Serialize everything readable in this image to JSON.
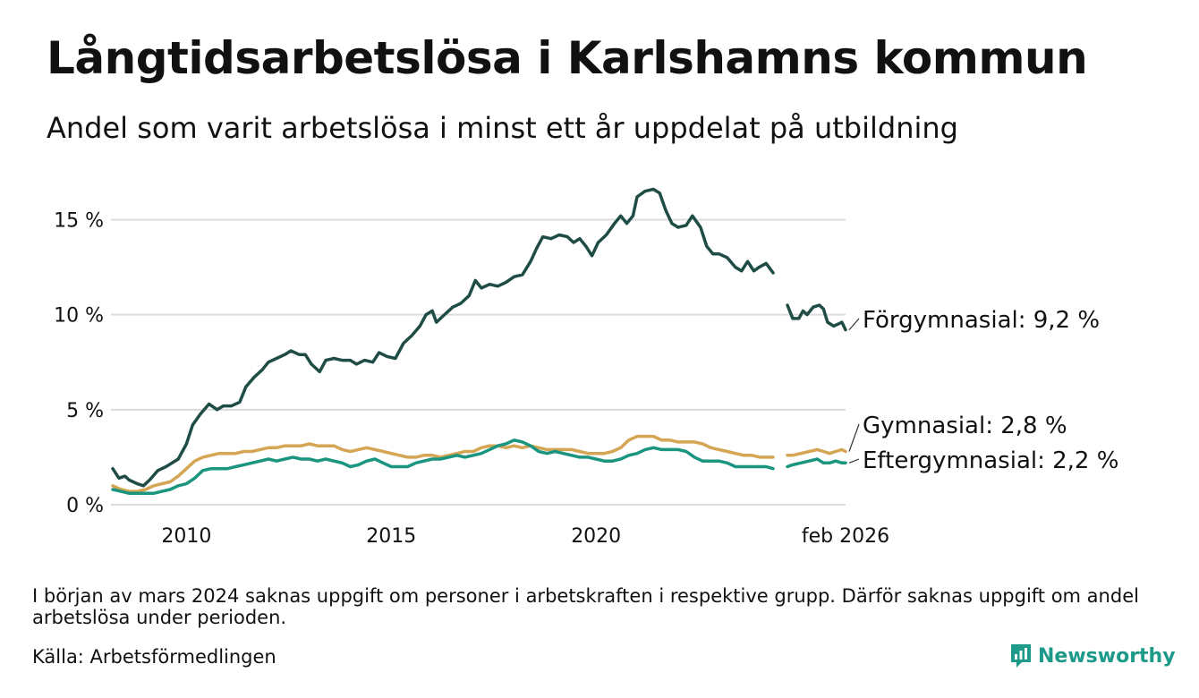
{
  "title": "Långtidsarbetslösa i Karlshamns kommun",
  "subtitle": "Andel som varit arbetslösa i minst ett år uppdelat på utbildning",
  "note": "I början av mars 2024 saknas uppgift om personer i arbetskraften i respektive grupp. Därför saknas uppgift om andel arbetslösa under perioden.",
  "source": "Källa: Arbetsförmedlingen",
  "brand": "Newsworthy",
  "colors": {
    "forgymnasial": "#1f4d46",
    "gymnasial": "#d4a552",
    "eftergymnasial": "#1a9580",
    "grid": "#dcdcdc",
    "brand": "#1d9a8a"
  },
  "chart_data": {
    "type": "line",
    "title": "Långtidsarbetslösa i Karlshamns kommun",
    "subtitle": "Andel som varit arbetslösa i minst ett år uppdelat på utbildning",
    "xlabel": "",
    "ylabel": "",
    "x_unit": "year",
    "xlim": [
      2008.2,
      2026.09
    ],
    "ylim": [
      0,
      17
    ],
    "y_ticks": [
      0,
      5,
      10,
      15
    ],
    "y_tick_labels": [
      "0 %",
      "5 %",
      "10 %",
      "15 %"
    ],
    "x_ticks": [
      2010,
      2015,
      2020,
      2026.09
    ],
    "x_tick_labels": [
      "2010",
      "2015",
      "2020",
      "feb 2026"
    ],
    "grid": true,
    "gap": [
      2024.0,
      2024.3
    ],
    "series": [
      {
        "name": "Förgymnasial",
        "label": "Förgymnasial: 9,2 %",
        "color_key": "forgymnasial",
        "points": [
          [
            2008.2,
            1.9
          ],
          [
            2008.35,
            1.4
          ],
          [
            2008.5,
            1.5
          ],
          [
            2008.6,
            1.3
          ],
          [
            2008.8,
            1.1
          ],
          [
            2008.95,
            1.0
          ],
          [
            2009.1,
            1.3
          ],
          [
            2009.3,
            1.8
          ],
          [
            2009.5,
            2.0
          ],
          [
            2009.65,
            2.2
          ],
          [
            2009.8,
            2.4
          ],
          [
            2010.0,
            3.2
          ],
          [
            2010.15,
            4.2
          ],
          [
            2010.35,
            4.8
          ],
          [
            2010.55,
            5.3
          ],
          [
            2010.75,
            5.0
          ],
          [
            2010.9,
            5.2
          ],
          [
            2011.1,
            5.2
          ],
          [
            2011.3,
            5.4
          ],
          [
            2011.45,
            6.2
          ],
          [
            2011.65,
            6.7
          ],
          [
            2011.85,
            7.1
          ],
          [
            2012.0,
            7.5
          ],
          [
            2012.2,
            7.7
          ],
          [
            2012.4,
            7.9
          ],
          [
            2012.55,
            8.1
          ],
          [
            2012.75,
            7.9
          ],
          [
            2012.9,
            7.9
          ],
          [
            2013.05,
            7.4
          ],
          [
            2013.25,
            7.0
          ],
          [
            2013.4,
            7.6
          ],
          [
            2013.6,
            7.7
          ],
          [
            2013.8,
            7.6
          ],
          [
            2014.0,
            7.6
          ],
          [
            2014.15,
            7.4
          ],
          [
            2014.35,
            7.6
          ],
          [
            2014.55,
            7.5
          ],
          [
            2014.7,
            8.0
          ],
          [
            2014.9,
            7.8
          ],
          [
            2015.1,
            7.7
          ],
          [
            2015.3,
            8.5
          ],
          [
            2015.5,
            8.9
          ],
          [
            2015.7,
            9.4
          ],
          [
            2015.85,
            10.0
          ],
          [
            2016.0,
            10.2
          ],
          [
            2016.1,
            9.6
          ],
          [
            2016.3,
            10.0
          ],
          [
            2016.5,
            10.4
          ],
          [
            2016.7,
            10.6
          ],
          [
            2016.9,
            11.0
          ],
          [
            2017.05,
            11.8
          ],
          [
            2017.2,
            11.4
          ],
          [
            2017.4,
            11.6
          ],
          [
            2017.6,
            11.5
          ],
          [
            2017.8,
            11.7
          ],
          [
            2018.0,
            12.0
          ],
          [
            2018.2,
            12.1
          ],
          [
            2018.4,
            12.8
          ],
          [
            2018.55,
            13.5
          ],
          [
            2018.7,
            14.1
          ],
          [
            2018.9,
            14.0
          ],
          [
            2019.1,
            14.2
          ],
          [
            2019.3,
            14.1
          ],
          [
            2019.45,
            13.8
          ],
          [
            2019.6,
            14.0
          ],
          [
            2019.75,
            13.6
          ],
          [
            2019.9,
            13.1
          ],
          [
            2020.05,
            13.8
          ],
          [
            2020.25,
            14.2
          ],
          [
            2020.45,
            14.8
          ],
          [
            2020.6,
            15.2
          ],
          [
            2020.75,
            14.8
          ],
          [
            2020.9,
            15.2
          ],
          [
            2021.0,
            16.2
          ],
          [
            2021.2,
            16.5
          ],
          [
            2021.4,
            16.6
          ],
          [
            2021.55,
            16.4
          ],
          [
            2021.7,
            15.5
          ],
          [
            2021.85,
            14.8
          ],
          [
            2022.0,
            14.6
          ],
          [
            2022.2,
            14.7
          ],
          [
            2022.35,
            15.2
          ],
          [
            2022.55,
            14.6
          ],
          [
            2022.7,
            13.6
          ],
          [
            2022.85,
            13.2
          ],
          [
            2023.0,
            13.2
          ],
          [
            2023.2,
            13.0
          ],
          [
            2023.4,
            12.5
          ],
          [
            2023.55,
            12.3
          ],
          [
            2023.7,
            12.8
          ],
          [
            2023.85,
            12.3
          ],
          [
            2023.98,
            12.5
          ],
          [
            2024.15,
            12.7
          ],
          [
            2024.32,
            12.2
          ],
          null,
          [
            2024.67,
            10.5
          ],
          [
            2024.8,
            9.8
          ],
          [
            2024.95,
            9.8
          ],
          [
            2025.05,
            10.2
          ],
          [
            2025.15,
            10.0
          ],
          [
            2025.3,
            10.4
          ],
          [
            2025.45,
            10.5
          ],
          [
            2025.55,
            10.3
          ],
          [
            2025.65,
            9.6
          ],
          [
            2025.8,
            9.4
          ],
          [
            2025.9,
            9.5
          ],
          [
            2026.0,
            9.6
          ],
          [
            2026.09,
            9.2
          ]
        ]
      },
      {
        "name": "Gymnasial",
        "label": "Gymnasial: 2,8 %",
        "color_key": "gymnasial",
        "points": [
          [
            2008.2,
            1.0
          ],
          [
            2008.4,
            0.8
          ],
          [
            2008.6,
            0.7
          ],
          [
            2008.8,
            0.7
          ],
          [
            2009.0,
            0.8
          ],
          [
            2009.2,
            1.0
          ],
          [
            2009.4,
            1.1
          ],
          [
            2009.6,
            1.2
          ],
          [
            2009.8,
            1.5
          ],
          [
            2010.0,
            1.9
          ],
          [
            2010.2,
            2.3
          ],
          [
            2010.4,
            2.5
          ],
          [
            2010.6,
            2.6
          ],
          [
            2010.8,
            2.7
          ],
          [
            2011.0,
            2.7
          ],
          [
            2011.2,
            2.7
          ],
          [
            2011.4,
            2.8
          ],
          [
            2011.6,
            2.8
          ],
          [
            2011.8,
            2.9
          ],
          [
            2012.0,
            3.0
          ],
          [
            2012.2,
            3.0
          ],
          [
            2012.4,
            3.1
          ],
          [
            2012.6,
            3.1
          ],
          [
            2012.8,
            3.1
          ],
          [
            2013.0,
            3.2
          ],
          [
            2013.2,
            3.1
          ],
          [
            2013.4,
            3.1
          ],
          [
            2013.6,
            3.1
          ],
          [
            2013.8,
            2.9
          ],
          [
            2014.0,
            2.8
          ],
          [
            2014.2,
            2.9
          ],
          [
            2014.4,
            3.0
          ],
          [
            2014.6,
            2.9
          ],
          [
            2014.8,
            2.8
          ],
          [
            2015.0,
            2.7
          ],
          [
            2015.2,
            2.6
          ],
          [
            2015.4,
            2.5
          ],
          [
            2015.6,
            2.5
          ],
          [
            2015.8,
            2.6
          ],
          [
            2016.0,
            2.6
          ],
          [
            2016.2,
            2.5
          ],
          [
            2016.4,
            2.6
          ],
          [
            2016.6,
            2.7
          ],
          [
            2016.8,
            2.8
          ],
          [
            2017.0,
            2.8
          ],
          [
            2017.2,
            3.0
          ],
          [
            2017.4,
            3.1
          ],
          [
            2017.6,
            3.1
          ],
          [
            2017.8,
            3.0
          ],
          [
            2018.0,
            3.1
          ],
          [
            2018.2,
            3.0
          ],
          [
            2018.4,
            3.1
          ],
          [
            2018.6,
            3.0
          ],
          [
            2018.8,
            2.9
          ],
          [
            2019.0,
            2.9
          ],
          [
            2019.2,
            2.9
          ],
          [
            2019.4,
            2.9
          ],
          [
            2019.6,
            2.8
          ],
          [
            2019.8,
            2.7
          ],
          [
            2020.0,
            2.7
          ],
          [
            2020.2,
            2.7
          ],
          [
            2020.4,
            2.8
          ],
          [
            2020.6,
            3.0
          ],
          [
            2020.8,
            3.4
          ],
          [
            2021.0,
            3.6
          ],
          [
            2021.2,
            3.6
          ],
          [
            2021.4,
            3.6
          ],
          [
            2021.6,
            3.4
          ],
          [
            2021.8,
            3.4
          ],
          [
            2022.0,
            3.3
          ],
          [
            2022.2,
            3.3
          ],
          [
            2022.4,
            3.3
          ],
          [
            2022.6,
            3.2
          ],
          [
            2022.8,
            3.0
          ],
          [
            2023.0,
            2.9
          ],
          [
            2023.2,
            2.8
          ],
          [
            2023.4,
            2.7
          ],
          [
            2023.6,
            2.6
          ],
          [
            2023.8,
            2.6
          ],
          [
            2024.0,
            2.5
          ],
          [
            2024.15,
            2.5
          ],
          [
            2024.32,
            2.5
          ],
          null,
          [
            2024.67,
            2.6
          ],
          [
            2024.8,
            2.6
          ],
          [
            2025.0,
            2.7
          ],
          [
            2025.2,
            2.8
          ],
          [
            2025.4,
            2.9
          ],
          [
            2025.55,
            2.8
          ],
          [
            2025.7,
            2.7
          ],
          [
            2025.85,
            2.8
          ],
          [
            2026.0,
            2.9
          ],
          [
            2026.09,
            2.8
          ]
        ]
      },
      {
        "name": "Eftergymnasial",
        "label": "Eftergymnasial: 2,2 %",
        "color_key": "eftergymnasial",
        "points": [
          [
            2008.2,
            0.8
          ],
          [
            2008.4,
            0.7
          ],
          [
            2008.6,
            0.6
          ],
          [
            2008.8,
            0.6
          ],
          [
            2009.0,
            0.6
          ],
          [
            2009.2,
            0.6
          ],
          [
            2009.4,
            0.7
          ],
          [
            2009.6,
            0.8
          ],
          [
            2009.8,
            1.0
          ],
          [
            2010.0,
            1.1
          ],
          [
            2010.2,
            1.4
          ],
          [
            2010.4,
            1.8
          ],
          [
            2010.6,
            1.9
          ],
          [
            2010.8,
            1.9
          ],
          [
            2011.0,
            1.9
          ],
          [
            2011.2,
            2.0
          ],
          [
            2011.4,
            2.1
          ],
          [
            2011.6,
            2.2
          ],
          [
            2011.8,
            2.3
          ],
          [
            2012.0,
            2.4
          ],
          [
            2012.2,
            2.3
          ],
          [
            2012.4,
            2.4
          ],
          [
            2012.6,
            2.5
          ],
          [
            2012.8,
            2.4
          ],
          [
            2013.0,
            2.4
          ],
          [
            2013.2,
            2.3
          ],
          [
            2013.4,
            2.4
          ],
          [
            2013.6,
            2.3
          ],
          [
            2013.8,
            2.2
          ],
          [
            2014.0,
            2.0
          ],
          [
            2014.2,
            2.1
          ],
          [
            2014.4,
            2.3
          ],
          [
            2014.6,
            2.4
          ],
          [
            2014.8,
            2.2
          ],
          [
            2015.0,
            2.0
          ],
          [
            2015.2,
            2.0
          ],
          [
            2015.4,
            2.0
          ],
          [
            2015.6,
            2.2
          ],
          [
            2015.8,
            2.3
          ],
          [
            2016.0,
            2.4
          ],
          [
            2016.2,
            2.4
          ],
          [
            2016.4,
            2.5
          ],
          [
            2016.6,
            2.6
          ],
          [
            2016.8,
            2.5
          ],
          [
            2017.0,
            2.6
          ],
          [
            2017.2,
            2.7
          ],
          [
            2017.4,
            2.9
          ],
          [
            2017.6,
            3.1
          ],
          [
            2017.8,
            3.2
          ],
          [
            2018.0,
            3.4
          ],
          [
            2018.2,
            3.3
          ],
          [
            2018.4,
            3.1
          ],
          [
            2018.6,
            2.8
          ],
          [
            2018.8,
            2.7
          ],
          [
            2019.0,
            2.8
          ],
          [
            2019.2,
            2.7
          ],
          [
            2019.4,
            2.6
          ],
          [
            2019.6,
            2.5
          ],
          [
            2019.8,
            2.5
          ],
          [
            2020.0,
            2.4
          ],
          [
            2020.2,
            2.3
          ],
          [
            2020.4,
            2.3
          ],
          [
            2020.6,
            2.4
          ],
          [
            2020.8,
            2.6
          ],
          [
            2021.0,
            2.7
          ],
          [
            2021.2,
            2.9
          ],
          [
            2021.4,
            3.0
          ],
          [
            2021.6,
            2.9
          ],
          [
            2021.8,
            2.9
          ],
          [
            2022.0,
            2.9
          ],
          [
            2022.2,
            2.8
          ],
          [
            2022.4,
            2.5
          ],
          [
            2022.6,
            2.3
          ],
          [
            2022.8,
            2.3
          ],
          [
            2023.0,
            2.3
          ],
          [
            2023.2,
            2.2
          ],
          [
            2023.4,
            2.0
          ],
          [
            2023.6,
            2.0
          ],
          [
            2023.8,
            2.0
          ],
          [
            2024.0,
            2.0
          ],
          [
            2024.15,
            2.0
          ],
          [
            2024.32,
            1.9
          ],
          null,
          [
            2024.67,
            2.0
          ],
          [
            2024.8,
            2.1
          ],
          [
            2025.0,
            2.2
          ],
          [
            2025.2,
            2.3
          ],
          [
            2025.4,
            2.4
          ],
          [
            2025.55,
            2.2
          ],
          [
            2025.7,
            2.2
          ],
          [
            2025.85,
            2.3
          ],
          [
            2026.0,
            2.2
          ],
          [
            2026.09,
            2.2
          ]
        ]
      }
    ]
  }
}
